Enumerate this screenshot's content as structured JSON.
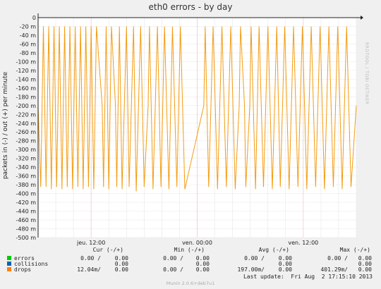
{
  "chart_data": {
    "type": "line",
    "title": "eth0 errors - by day",
    "ylabel": "packets in (-) / out (+) per minute",
    "ylim": [
      -500,
      0
    ],
    "y_ticks": [
      {
        "v": 0,
        "label": "0"
      },
      {
        "v": -20,
        "label": "-20 m"
      },
      {
        "v": -40,
        "label": "-40 m"
      },
      {
        "v": -60,
        "label": "-60 m"
      },
      {
        "v": -80,
        "label": "-80 m"
      },
      {
        "v": -100,
        "label": "-100 m"
      },
      {
        "v": -120,
        "label": "-120 m"
      },
      {
        "v": -140,
        "label": "-140 m"
      },
      {
        "v": -160,
        "label": "-160 m"
      },
      {
        "v": -180,
        "label": "-180 m"
      },
      {
        "v": -200,
        "label": "-200 m"
      },
      {
        "v": -220,
        "label": "-220 m"
      },
      {
        "v": -240,
        "label": "-240 m"
      },
      {
        "v": -260,
        "label": "-260 m"
      },
      {
        "v": -280,
        "label": "-280 m"
      },
      {
        "v": -300,
        "label": "-300 m"
      },
      {
        "v": -320,
        "label": "-320 m"
      },
      {
        "v": -340,
        "label": "-340 m"
      },
      {
        "v": -360,
        "label": "-360 m"
      },
      {
        "v": -380,
        "label": "-380 m"
      },
      {
        "v": -400,
        "label": "-400 m"
      },
      {
        "v": -420,
        "label": "-420 m"
      },
      {
        "v": -440,
        "label": "-440 m"
      },
      {
        "v": -460,
        "label": "-460 m"
      },
      {
        "v": -480,
        "label": "-480 m"
      },
      {
        "v": -500,
        "label": "-500 m"
      }
    ],
    "x_range_hours": [
      0,
      36
    ],
    "x_ticks": [
      {
        "t": 6,
        "label": "jeu. 12:00"
      },
      {
        "t": 18,
        "label": "ven. 00:00"
      },
      {
        "t": 30,
        "label": "ven. 12:00"
      }
    ],
    "grid": true,
    "series": [
      {
        "name": "drops",
        "color": "#f39c12",
        "baseline": -200,
        "low": -385,
        "high": -20,
        "spikes": [
          [
            0.3,
            -385
          ],
          [
            0.6,
            -20
          ],
          [
            0.9,
            -385
          ],
          [
            1.2,
            -20
          ],
          [
            1.5,
            -390
          ],
          [
            1.8,
            -20
          ],
          [
            2.1,
            -385
          ],
          [
            2.4,
            -20
          ],
          [
            2.7,
            -390
          ],
          [
            3.0,
            -20
          ],
          [
            3.3,
            -385
          ],
          [
            3.6,
            -20
          ],
          [
            3.9,
            -390
          ],
          [
            4.2,
            -20
          ],
          [
            4.5,
            -385
          ],
          [
            4.8,
            -20
          ],
          [
            5.1,
            -390
          ],
          [
            5.4,
            -20
          ],
          [
            5.7,
            -385
          ],
          [
            6.0,
            -20
          ],
          [
            6.3,
            -390
          ],
          [
            6.6,
            -20
          ],
          [
            7.4,
            -385
          ],
          [
            7.7,
            -20
          ],
          [
            8.0,
            -390
          ],
          [
            8.3,
            -20
          ],
          [
            8.9,
            -385
          ],
          [
            9.2,
            -20
          ],
          [
            9.5,
            -390
          ],
          [
            10.0,
            -20
          ],
          [
            10.3,
            -385
          ],
          [
            10.8,
            -20
          ],
          [
            11.1,
            -395
          ],
          [
            11.6,
            -20
          ],
          [
            12.0,
            -385
          ],
          [
            12.6,
            -20
          ],
          [
            13.0,
            -390
          ],
          [
            13.5,
            -20
          ],
          [
            13.9,
            -385
          ],
          [
            14.3,
            -20
          ],
          [
            14.8,
            -390
          ],
          [
            15.2,
            -20
          ],
          [
            15.7,
            -385
          ],
          [
            16.1,
            -20
          ],
          [
            16.6,
            -390
          ],
          [
            18.9,
            -20
          ],
          [
            19.3,
            -385
          ],
          [
            19.8,
            -20
          ],
          [
            20.3,
            -390
          ],
          [
            20.8,
            -20
          ],
          [
            21.3,
            -385
          ],
          [
            21.8,
            -20
          ],
          [
            22.3,
            -390
          ],
          [
            22.9,
            -20
          ],
          [
            23.5,
            -385
          ],
          [
            24.1,
            -20
          ],
          [
            24.6,
            -390
          ],
          [
            25.0,
            -20
          ],
          [
            25.5,
            -385
          ],
          [
            26.0,
            -20
          ],
          [
            26.5,
            -390
          ],
          [
            27.0,
            -20
          ],
          [
            27.4,
            -385
          ],
          [
            27.9,
            -20
          ],
          [
            28.4,
            -390
          ],
          [
            28.9,
            -20
          ],
          [
            29.4,
            -385
          ],
          [
            29.9,
            -20
          ],
          [
            30.4,
            -390
          ],
          [
            30.9,
            -20
          ],
          [
            31.4,
            -385
          ],
          [
            31.9,
            -20
          ],
          [
            32.4,
            -390
          ],
          [
            32.9,
            -20
          ],
          [
            33.4,
            -385
          ],
          [
            33.9,
            -20
          ],
          [
            34.4,
            -390
          ],
          [
            34.9,
            -20
          ],
          [
            35.4,
            -385
          ]
        ]
      }
    ],
    "legend": {
      "headers": {
        "cur": "Cur (-/+)",
        "min": "Min (-/+)",
        "avg": "Avg (-/+)",
        "max": "Max (-/+)"
      },
      "rows": [
        {
          "name": "errors",
          "color": "#00cc00",
          "cur_in": "0.00 /",
          "cur_out": "0.00",
          "min_in": "0.00 /",
          "min_out": "0.00",
          "avg_in": "0.00 /",
          "avg_out": "0.00",
          "max_in": "0.00 /",
          "max_out": "0.00"
        },
        {
          "name": "collisions",
          "color": "#0066b3",
          "cur_in": "",
          "cur_out": "0.00",
          "min_in": "",
          "min_out": "0.00",
          "avg_in": "",
          "avg_out": "0.00",
          "max_in": "",
          "max_out": "0.00"
        },
        {
          "name": "drops",
          "color": "#ff8000",
          "cur_in": "12.04m/",
          "cur_out": "0.00",
          "min_in": "0.00 /",
          "min_out": "0.00",
          "avg_in": "197.00m/",
          "avg_out": "0.00",
          "max_in": "401.29m/",
          "max_out": "0.00"
        }
      ]
    },
    "last_update": "Last update:  Fri Aug  2 17:15:10 2013",
    "footer": "Munin 2.0.6+deb7u1",
    "side_text": "RRDTOOL / TOBI OETIKER"
  }
}
